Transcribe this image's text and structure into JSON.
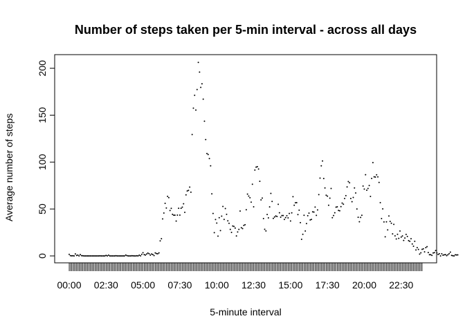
{
  "chart_data": {
    "type": "scatter",
    "title": "Number of steps taken per 5-min interval - across all days",
    "xlabel": "5-minute interval",
    "ylabel": "Average number of steps",
    "xlim": [
      0,
      287
    ],
    "ylim": [
      0,
      206
    ],
    "y_ticks": [
      0,
      50,
      100,
      150,
      200
    ],
    "x_tick_labels": [
      "00:00",
      "02:30",
      "05:00",
      "07:30",
      "10:00",
      "12:30",
      "15:00",
      "17:30",
      "20:00",
      "22:30"
    ],
    "x_tick_positions": [
      0,
      30,
      60,
      90,
      120,
      150,
      180,
      210,
      240,
      270
    ],
    "grid": false,
    "legend": "none",
    "marker_color": "#000000",
    "x_unit": "interval index (0 = 00:00, 5-min steps)",
    "values": [
      1.7,
      0.3,
      0.1,
      0.2,
      0.0,
      2.1,
      0.5,
      0.9,
      0.0,
      1.5,
      0.3,
      0.2,
      0.0,
      0.0,
      0.0,
      0.0,
      0.0,
      0.0,
      0.0,
      0.0,
      0.0,
      0.0,
      0.0,
      0.0,
      0.0,
      0.1,
      0.0,
      0.0,
      0.0,
      0.0,
      0.6,
      0.0,
      0.8,
      0.0,
      0.0,
      0.0,
      0.0,
      0.0,
      0.2,
      0.0,
      0.0,
      0.0,
      0.0,
      0.0,
      0.0,
      0.0,
      0.9,
      0.3,
      0.0,
      0.0,
      0.0,
      0.2,
      0.1,
      0.0,
      0.0,
      0.2,
      0.0,
      0.8,
      0.1,
      1.7,
      3.4,
      1.4,
      0.9,
      2.0,
      3.0,
      2.3,
      0.8,
      2.0,
      1.5,
      0.4,
      3.2,
      2.5,
      2.3,
      3.2,
      16.0,
      18.3,
      39.4,
      45.7,
      56.0,
      51.0,
      63.5,
      62.1,
      48.4,
      50.7,
      44.3,
      43.4,
      43.4,
      37.1,
      43.5,
      50.8,
      43.5,
      50.8,
      52.0,
      55.6,
      46.4,
      65.0,
      69.2,
      69.8,
      73.3,
      67.9,
      129.4,
      157.5,
      171.2,
      155.4,
      177.3,
      206.2,
      195.9,
      179.6,
      183.4,
      167.0,
      143.5,
      124.0,
      109.1,
      108.1,
      103.7,
      95.96,
      66.2,
      45.2,
      24.8,
      38.8,
      34.98,
      21.06,
      40.7,
      26.98,
      42.4,
      52.7,
      38.9,
      50.5,
      44.3,
      37.4,
      34.7,
      28.3,
      25.1,
      31.9,
      31.4,
      29.7,
      21.3,
      25.5,
      28.3,
      47.8,
      30.0,
      29.1,
      32.5,
      33.3,
      49.2,
      65.9,
      63.8,
      62.0,
      57.3,
      76.4,
      52.3,
      91.5,
      94.6,
      95.1,
      92.6,
      79.5,
      59.7,
      61.6,
      39.8,
      28.4,
      26.6,
      44.1,
      40.5,
      52.2,
      66.6,
      58.0,
      40.0,
      41.5,
      42.6,
      42.0,
      55.0,
      46.0,
      41.3,
      43.0,
      43.0,
      38.9,
      40.8,
      42.8,
      40.5,
      45.2,
      37.2,
      45.9,
      63.1,
      54.0,
      56.7,
      56.8,
      44.0,
      48.7,
      35.5,
      17.7,
      23.0,
      43.3,
      26.5,
      34.5,
      42.8,
      45.6,
      38.3,
      38.9,
      47.0,
      46.7,
      52.1,
      43.2,
      49.0,
      65.3,
      82.9,
      96.0,
      101.2,
      82.5,
      72.4,
      64.7,
      63.7,
      54.0,
      61.5,
      71.9,
      40.7,
      43.0,
      46.0,
      52.0,
      52.3,
      48.5,
      48.1,
      52.5,
      56.3,
      55.1,
      61.2,
      64.2,
      73.5,
      79.2,
      77.9,
      61.2,
      57.8,
      62.3,
      72.4,
      67.1,
      50.0,
      41.2,
      36.4,
      41.0,
      43.3,
      74.4,
      71.2,
      86.5,
      70.0,
      71.9,
      75.0,
      63.4,
      82.6,
      99.4,
      84.3,
      84.0,
      86.4,
      84.2,
      78.3,
      56.8,
      39.8,
      50.1,
      36.2,
      20.4,
      36.3,
      27.7,
      42.6,
      36.8,
      34.8,
      23.5,
      33.6,
      21.4,
      18.1,
      23.0,
      18.7,
      26.5,
      20.1,
      21.3,
      16.5,
      19.1,
      22.9,
      20.7,
      16.3,
      15.6,
      18.3,
      12.7,
      10.3,
      15.6,
      6.4,
      8.8,
      6.9,
      1.9,
      3.3,
      7.0,
      7.6,
      4.3,
      8.8,
      9.9,
      3.6,
      1.3,
      1.3,
      0.6,
      3.1,
      3.5,
      5.7,
      3.2,
      1.6,
      2.3,
      0.0,
      2.3,
      0.7,
      1.2,
      1.4,
      0.3,
      1.3,
      2.4,
      4.1,
      0.6,
      0.2,
      0.0,
      1.2,
      1.0,
      1.1
    ]
  }
}
